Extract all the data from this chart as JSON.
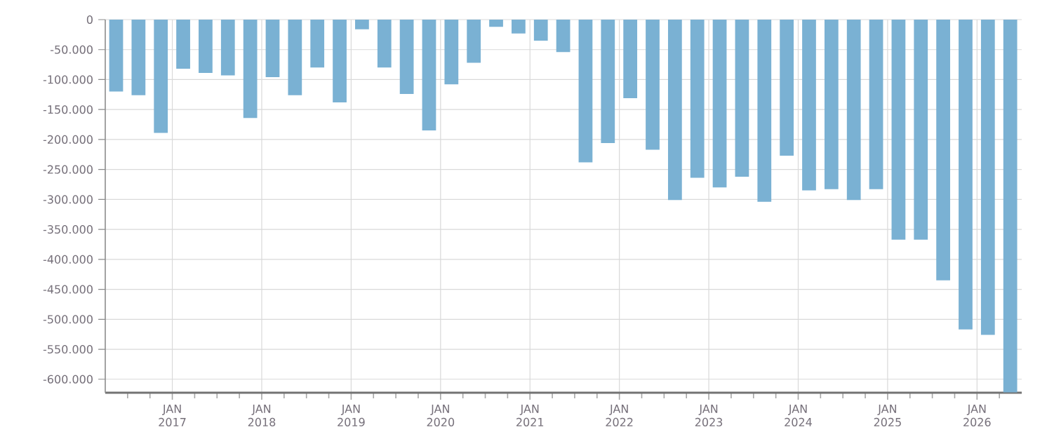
{
  "chart_data": {
    "type": "bar",
    "color": "#7ab1d3",
    "grid": true,
    "x": [
      "2016-05-15",
      "2016-08-15",
      "2016-11-15",
      "2017-02-15",
      "2017-05-15",
      "2017-08-15",
      "2017-11-15",
      "2018-02-15",
      "2018-05-15",
      "2018-08-15",
      "2018-11-15",
      "2019-02-15",
      "2019-05-15",
      "2019-08-15",
      "2019-11-15",
      "2020-02-15",
      "2020-05-15",
      "2020-08-15",
      "2020-11-15",
      "2021-02-15",
      "2021-05-15",
      "2021-08-15",
      "2021-11-15",
      "2022-02-15",
      "2022-05-15",
      "2022-08-15",
      "2022-11-15",
      "2023-02-15",
      "2023-05-15",
      "2023-08-15",
      "2023-11-15",
      "2024-02-15",
      "2024-05-15",
      "2024-08-15",
      "2024-11-15",
      "2025-02-15",
      "2025-05-15",
      "2025-08-15",
      "2025-11-15",
      "2026-02-15",
      "2026-05-15"
    ],
    "values": [
      -120000,
      -126000,
      -189000,
      -82000,
      -89000,
      -93000,
      -164000,
      -96000,
      -126000,
      -80000,
      -138000,
      -16000,
      -80000,
      -124000,
      -185000,
      -108000,
      -72000,
      -12000,
      -23000,
      -35000,
      -54000,
      -238000,
      -206000,
      -131000,
      -217000,
      -301000,
      -264000,
      -280000,
      -262000,
      -304000,
      -227000,
      -285000,
      -283000,
      -301000,
      -283000,
      -367000,
      -367000,
      -435000,
      -517000,
      -526000,
      -622000
    ],
    "xlim": [
      "2016-04",
      "2026-07"
    ],
    "xticks": [
      {
        "value": "2016-07",
        "label": null
      },
      {
        "value": "2016-10",
        "label": null
      },
      {
        "value": "2017-01",
        "label": "JAN 2017"
      },
      {
        "value": "2017-04",
        "label": null
      },
      {
        "value": "2017-07",
        "label": null
      },
      {
        "value": "2017-10",
        "label": null
      },
      {
        "value": "2018-01",
        "label": "JAN 2018"
      },
      {
        "value": "2018-04",
        "label": null
      },
      {
        "value": "2018-07",
        "label": null
      },
      {
        "value": "2018-10",
        "label": null
      },
      {
        "value": "2019-01",
        "label": "JAN 2019"
      },
      {
        "value": "2019-04",
        "label": null
      },
      {
        "value": "2019-07",
        "label": null
      },
      {
        "value": "2019-10",
        "label": null
      },
      {
        "value": "2020-01",
        "label": "JAN 2020"
      },
      {
        "value": "2020-04",
        "label": null
      },
      {
        "value": "2020-07",
        "label": null
      },
      {
        "value": "2020-10",
        "label": null
      },
      {
        "value": "2021-01",
        "label": "JAN 2021"
      },
      {
        "value": "2021-04",
        "label": null
      },
      {
        "value": "2021-07",
        "label": null
      },
      {
        "value": "2021-10",
        "label": null
      },
      {
        "value": "2022-01",
        "label": "JAN 2022"
      },
      {
        "value": "2022-04",
        "label": null
      },
      {
        "value": "2022-07",
        "label": null
      },
      {
        "value": "2022-10",
        "label": null
      },
      {
        "value": "2023-01",
        "label": "JAN 2023"
      },
      {
        "value": "2023-04",
        "label": null
      },
      {
        "value": "2023-07",
        "label": null
      },
      {
        "value": "2023-10",
        "label": null
      },
      {
        "value": "2024-01",
        "label": "JAN 2024"
      },
      {
        "value": "2024-04",
        "label": null
      },
      {
        "value": "2024-07",
        "label": null
      },
      {
        "value": "2024-10",
        "label": null
      },
      {
        "value": "2025-01",
        "label": "JAN 2025"
      },
      {
        "value": "2025-04",
        "label": null
      },
      {
        "value": "2025-07",
        "label": null
      },
      {
        "value": "2025-10",
        "label": null
      },
      {
        "value": "2026-01",
        "label": "JAN 2026"
      },
      {
        "value": "2026-04",
        "label": null
      }
    ],
    "ylim": [
      -622500,
      0
    ],
    "yticks": [
      {
        "value": -600000,
        "label": "-600.000"
      },
      {
        "value": -550000,
        "label": "-550.000"
      },
      {
        "value": -500000,
        "label": "-500.000"
      },
      {
        "value": -450000,
        "label": "-450.000"
      },
      {
        "value": -400000,
        "label": "-400.000"
      },
      {
        "value": -350000,
        "label": "-350.000"
      },
      {
        "value": -300000,
        "label": "-300.000"
      },
      {
        "value": -250000,
        "label": "-250.000"
      },
      {
        "value": -200000,
        "label": "-200.000"
      },
      {
        "value": -150000,
        "label": "-150.000"
      },
      {
        "value": -100000,
        "label": "-100.000"
      },
      {
        "value": -50000,
        "label": "-50.000"
      },
      0
    ]
  }
}
